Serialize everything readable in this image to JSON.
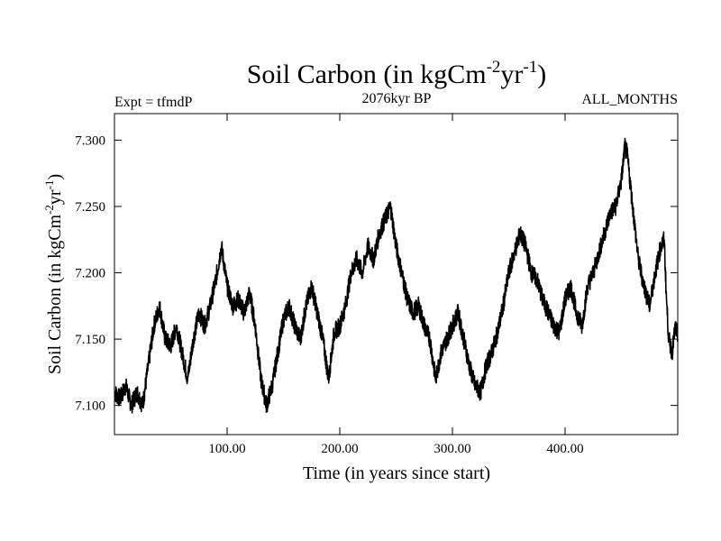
{
  "chart_data": {
    "type": "line",
    "title": {
      "base": "Soil Carbon (in kgCm",
      "sup1": "-2",
      "mid": "yr",
      "sup2": "-1",
      "end": ")"
    },
    "header_left": "Expt = tfmdP",
    "header_center": "2076kyr BP",
    "header_right": "ALL_MONTHS",
    "xlabel": "Time (in years since start)",
    "ylabel": {
      "base": "Soil Carbon (in kgCm",
      "sup1": "-2",
      "mid": "yr",
      "sup2": "-1",
      "end": ")"
    },
    "xlim": [
      0,
      500
    ],
    "ylim": [
      7.078,
      7.32
    ],
    "xticks": [
      {
        "value": 100,
        "label": "100.00"
      },
      {
        "value": 200,
        "label": "200.00"
      },
      {
        "value": 300,
        "label": "300.00"
      },
      {
        "value": 400,
        "label": "400.00"
      }
    ],
    "yticks": [
      {
        "value": 7.1,
        "label": "7.100"
      },
      {
        "value": 7.15,
        "label": "7.150"
      },
      {
        "value": 7.2,
        "label": "7.200"
      },
      {
        "value": 7.25,
        "label": "7.250"
      },
      {
        "value": 7.3,
        "label": "7.300"
      }
    ],
    "series": [
      {
        "name": "Soil Carbon",
        "points": [
          [
            0,
            7.11
          ],
          [
            5,
            7.105
          ],
          [
            10,
            7.115
          ],
          [
            15,
            7.1
          ],
          [
            20,
            7.11
          ],
          [
            25,
            7.1
          ],
          [
            30,
            7.13
          ],
          [
            35,
            7.16
          ],
          [
            40,
            7.175
          ],
          [
            45,
            7.15
          ],
          [
            50,
            7.145
          ],
          [
            55,
            7.16
          ],
          [
            60,
            7.14
          ],
          [
            65,
            7.12
          ],
          [
            70,
            7.15
          ],
          [
            75,
            7.17
          ],
          [
            80,
            7.16
          ],
          [
            85,
            7.175
          ],
          [
            90,
            7.195
          ],
          [
            95,
            7.22
          ],
          [
            100,
            7.19
          ],
          [
            105,
            7.175
          ],
          [
            110,
            7.18
          ],
          [
            115,
            7.17
          ],
          [
            120,
            7.185
          ],
          [
            125,
            7.16
          ],
          [
            130,
            7.12
          ],
          [
            135,
            7.1
          ],
          [
            140,
            7.115
          ],
          [
            145,
            7.14
          ],
          [
            150,
            7.165
          ],
          [
            155,
            7.175
          ],
          [
            160,
            7.16
          ],
          [
            165,
            7.15
          ],
          [
            170,
            7.175
          ],
          [
            175,
            7.19
          ],
          [
            180,
            7.17
          ],
          [
            185,
            7.15
          ],
          [
            190,
            7.12
          ],
          [
            195,
            7.155
          ],
          [
            200,
            7.16
          ],
          [
            205,
            7.175
          ],
          [
            210,
            7.2
          ],
          [
            215,
            7.21
          ],
          [
            220,
            7.2
          ],
          [
            225,
            7.22
          ],
          [
            230,
            7.21
          ],
          [
            235,
            7.23
          ],
          [
            240,
            7.24
          ],
          [
            245,
            7.25
          ],
          [
            250,
            7.22
          ],
          [
            255,
            7.2
          ],
          [
            260,
            7.18
          ],
          [
            265,
            7.17
          ],
          [
            270,
            7.175
          ],
          [
            275,
            7.16
          ],
          [
            280,
            7.15
          ],
          [
            285,
            7.12
          ],
          [
            290,
            7.14
          ],
          [
            295,
            7.15
          ],
          [
            300,
            7.16
          ],
          [
            305,
            7.17
          ],
          [
            310,
            7.15
          ],
          [
            315,
            7.13
          ],
          [
            320,
            7.115
          ],
          [
            325,
            7.11
          ],
          [
            330,
            7.13
          ],
          [
            335,
            7.14
          ],
          [
            340,
            7.155
          ],
          [
            345,
            7.175
          ],
          [
            350,
            7.2
          ],
          [
            355,
            7.215
          ],
          [
            360,
            7.23
          ],
          [
            365,
            7.22
          ],
          [
            370,
            7.2
          ],
          [
            375,
            7.195
          ],
          [
            380,
            7.18
          ],
          [
            385,
            7.17
          ],
          [
            390,
            7.16
          ],
          [
            395,
            7.155
          ],
          [
            400,
            7.18
          ],
          [
            405,
            7.19
          ],
          [
            410,
            7.17
          ],
          [
            415,
            7.16
          ],
          [
            420,
            7.19
          ],
          [
            425,
            7.2
          ],
          [
            430,
            7.215
          ],
          [
            435,
            7.23
          ],
          [
            440,
            7.245
          ],
          [
            445,
            7.25
          ],
          [
            450,
            7.27
          ],
          [
            453,
            7.295
          ],
          [
            455,
            7.29
          ],
          [
            460,
            7.25
          ],
          [
            465,
            7.21
          ],
          [
            470,
            7.19
          ],
          [
            475,
            7.175
          ],
          [
            480,
            7.2
          ],
          [
            485,
            7.22
          ],
          [
            488,
            7.225
          ],
          [
            490,
            7.18
          ],
          [
            492,
            7.15
          ],
          [
            495,
            7.14
          ],
          [
            498,
            7.16
          ],
          [
            500,
            7.15
          ]
        ]
      }
    ]
  }
}
